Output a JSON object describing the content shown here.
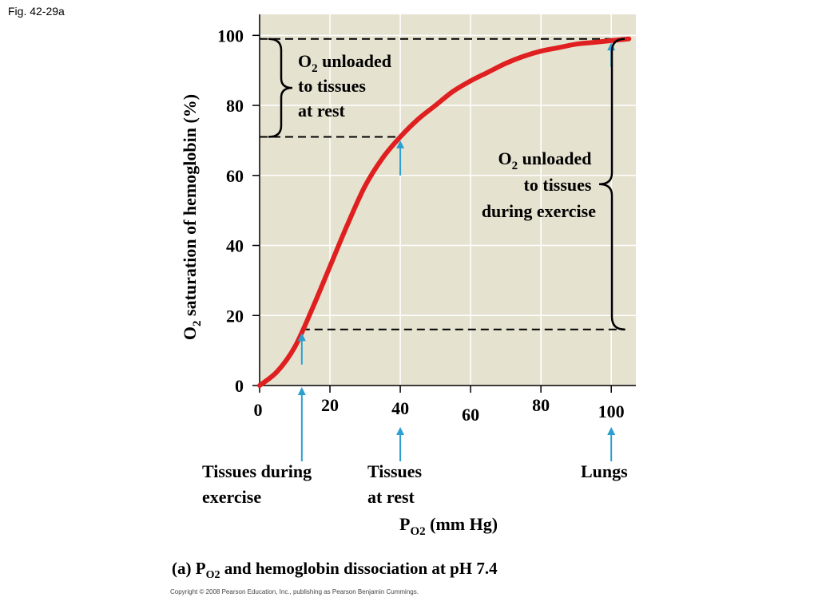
{
  "figure_label": "Fig. 42-29a",
  "caption": {
    "prefix": "(a) P",
    "subscript": "O2",
    "suffix": " and hemoglobin dissociation at pH 7.4"
  },
  "copyright": "Copyright © 2008 Pearson Education, Inc., publishing as Pearson Benjamin Cummings.",
  "colors": {
    "plot_bg": "#e6e2d0",
    "curve": "#e02020",
    "arrow": "#2a9fd0",
    "grid": "#ffffff"
  },
  "chart_data": {
    "type": "line",
    "xlabel": {
      "main": "P",
      "subscript": "O2",
      "rest": " (mm Hg)"
    },
    "ylabel": {
      "main": "O",
      "subscript": "2",
      "rest": " saturation of hemoglobin (%)"
    },
    "xlim": [
      0,
      107
    ],
    "ylim": [
      0,
      106
    ],
    "xticks": [
      0,
      20,
      40,
      60,
      80,
      100
    ],
    "yticks": [
      0,
      20,
      40,
      60,
      80,
      100
    ],
    "grid": true,
    "series": [
      {
        "x": [
          0,
          5,
          10,
          15,
          20,
          25,
          30,
          35,
          40,
          45,
          50,
          55,
          60,
          65,
          70,
          75,
          80,
          85,
          90,
          95,
          100,
          105
        ],
        "y": [
          0,
          4,
          11,
          22,
          34,
          46,
          57,
          65,
          71,
          76,
          80,
          84,
          87,
          89.5,
          92,
          94,
          95.5,
          96.5,
          97.5,
          98,
          98.5,
          99
        ]
      }
    ],
    "reference_lines": [
      {
        "y": 99,
        "x_from": 0,
        "x_to": 104
      },
      {
        "y": 71,
        "x_from": 0,
        "x_to": 40
      },
      {
        "y": 16,
        "x_from": 12,
        "x_to": 104
      }
    ],
    "markers": [
      {
        "x": 12,
        "label_lines": [
          "Tissues during",
          "exercise"
        ]
      },
      {
        "x": 40,
        "label_lines": [
          "Tissues",
          "at rest"
        ]
      },
      {
        "x": 100,
        "label_lines": [
          "Lungs"
        ]
      }
    ],
    "annotations": [
      {
        "id": "rest",
        "title_main": "O",
        "title_sub": "2",
        "title_rest": " unloaded",
        "lines": [
          "to tissues",
          "at rest"
        ],
        "y_from": 71,
        "y_to": 99
      },
      {
        "id": "exercise",
        "title_main": "O",
        "title_sub": "2",
        "title_rest": " unloaded",
        "lines": [
          "to tissues",
          "during exercise"
        ],
        "y_from": 16,
        "y_to": 99
      }
    ]
  }
}
